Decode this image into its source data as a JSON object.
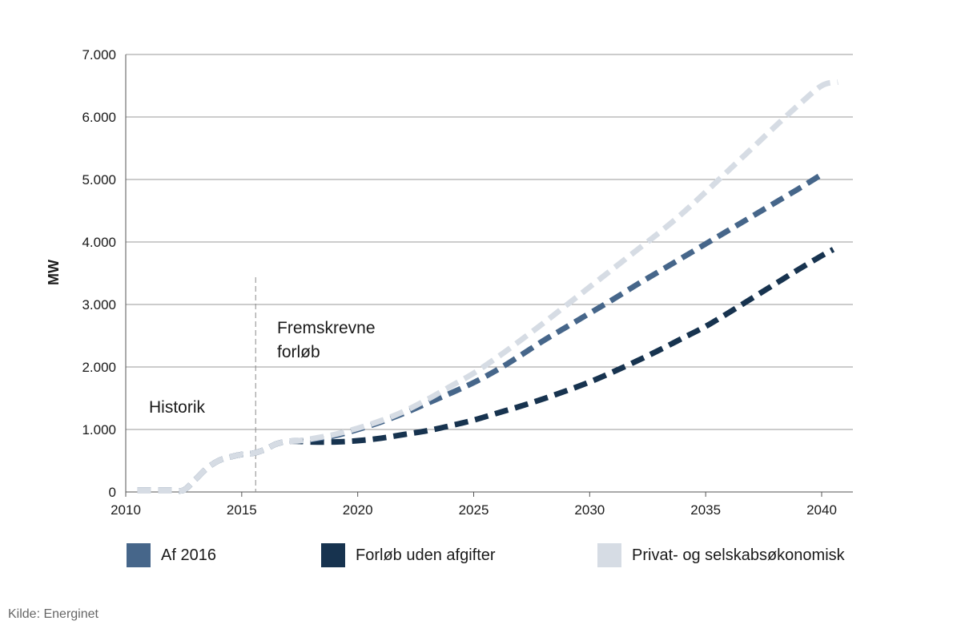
{
  "chart_data": {
    "type": "line",
    "title": "",
    "xlabel": "",
    "ylabel": "MW",
    "xlim": [
      2010,
      2041
    ],
    "ylim": [
      0,
      7000
    ],
    "x_ticks": [
      2010,
      2015,
      2020,
      2025,
      2030,
      2035,
      2040
    ],
    "x_tick_labels": [
      "2010",
      "2015",
      "2020",
      "2025",
      "2030",
      "2035",
      "2040"
    ],
    "y_ticks": [
      0,
      1000,
      2000,
      3000,
      4000,
      5000,
      6000,
      7000
    ],
    "y_tick_labels": [
      "0",
      "1.000",
      "2.000",
      "3.000",
      "4.000",
      "5.000",
      "6.000",
      "7.000"
    ],
    "grid": "horizontal",
    "divider_year": 2015.6,
    "annotations": {
      "history": "Historik",
      "projection_line1": "Fremskrevne",
      "projection_line2": "forløb"
    },
    "series": [
      {
        "name": "Forløb uden afgifter",
        "color": "#17334f",
        "x": [
          2010.5,
          2011,
          2011.5,
          2012,
          2012.5,
          2013,
          2013.5,
          2014,
          2014.5,
          2015,
          2015.5,
          2016,
          2016.5,
          2017,
          2017.5,
          2018,
          2019,
          2020,
          2021,
          2022,
          2023,
          2024,
          2025,
          2026,
          2027,
          2028,
          2029,
          2030,
          2031,
          2032,
          2033,
          2034,
          2035,
          2036,
          2037,
          2038,
          2039,
          2040,
          2040.5
        ],
        "values": [
          30,
          30,
          30,
          30,
          30,
          200,
          380,
          500,
          560,
          600,
          620,
          680,
          770,
          810,
          810,
          800,
          800,
          820,
          860,
          920,
          980,
          1060,
          1150,
          1260,
          1370,
          1490,
          1620,
          1760,
          1920,
          2090,
          2270,
          2460,
          2650,
          2870,
          3100,
          3330,
          3560,
          3780,
          3880
        ]
      },
      {
        "name": "Af 2016",
        "color": "#46668a",
        "x": [
          2010.5,
          2011,
          2011.5,
          2012,
          2012.5,
          2013,
          2013.5,
          2014,
          2014.5,
          2015,
          2015.5,
          2016,
          2016.5,
          2017,
          2017.5,
          2018,
          2019,
          2020,
          2021,
          2022,
          2023,
          2024,
          2025,
          2026,
          2027,
          2028,
          2029,
          2030,
          2031,
          2032,
          2033,
          2034,
          2035,
          2036,
          2037,
          2038,
          2039,
          2040
        ],
        "values": [
          30,
          30,
          30,
          30,
          30,
          200,
          380,
          500,
          560,
          600,
          620,
          680,
          770,
          810,
          820,
          840,
          900,
          1000,
          1120,
          1260,
          1420,
          1580,
          1750,
          1950,
          2180,
          2420,
          2640,
          2860,
          3080,
          3310,
          3530,
          3750,
          3970,
          4190,
          4410,
          4630,
          4850,
          5080
        ]
      },
      {
        "name": "Privat- og selskabsøkonomisk",
        "color": "#d6dce4",
        "x": [
          2010.5,
          2011,
          2011.5,
          2012,
          2012.5,
          2013,
          2013.5,
          2014,
          2014.5,
          2015,
          2015.5,
          2016,
          2016.5,
          2017,
          2017.5,
          2018,
          2019,
          2020,
          2021,
          2022,
          2023,
          2024,
          2025,
          2026,
          2027,
          2028,
          2029,
          2030,
          2031,
          2032,
          2033,
          2034,
          2035,
          2036,
          2037,
          2038,
          2039,
          2040,
          2040.7
        ],
        "values": [
          30,
          30,
          30,
          30,
          30,
          200,
          380,
          500,
          560,
          600,
          620,
          680,
          770,
          810,
          820,
          850,
          920,
          1020,
          1140,
          1290,
          1480,
          1690,
          1900,
          2150,
          2420,
          2700,
          2990,
          3280,
          3570,
          3860,
          4150,
          4460,
          4800,
          5150,
          5500,
          5850,
          6190,
          6500,
          6560
        ]
      }
    ],
    "legend": [
      {
        "label": "Af 2016",
        "color": "#46668a"
      },
      {
        "label": "Forløb uden afgifter",
        "color": "#17334f"
      },
      {
        "label": "Privat- og selskabsøkonomisk",
        "color": "#d6dce4"
      }
    ],
    "source": "Kilde: Energinet"
  }
}
